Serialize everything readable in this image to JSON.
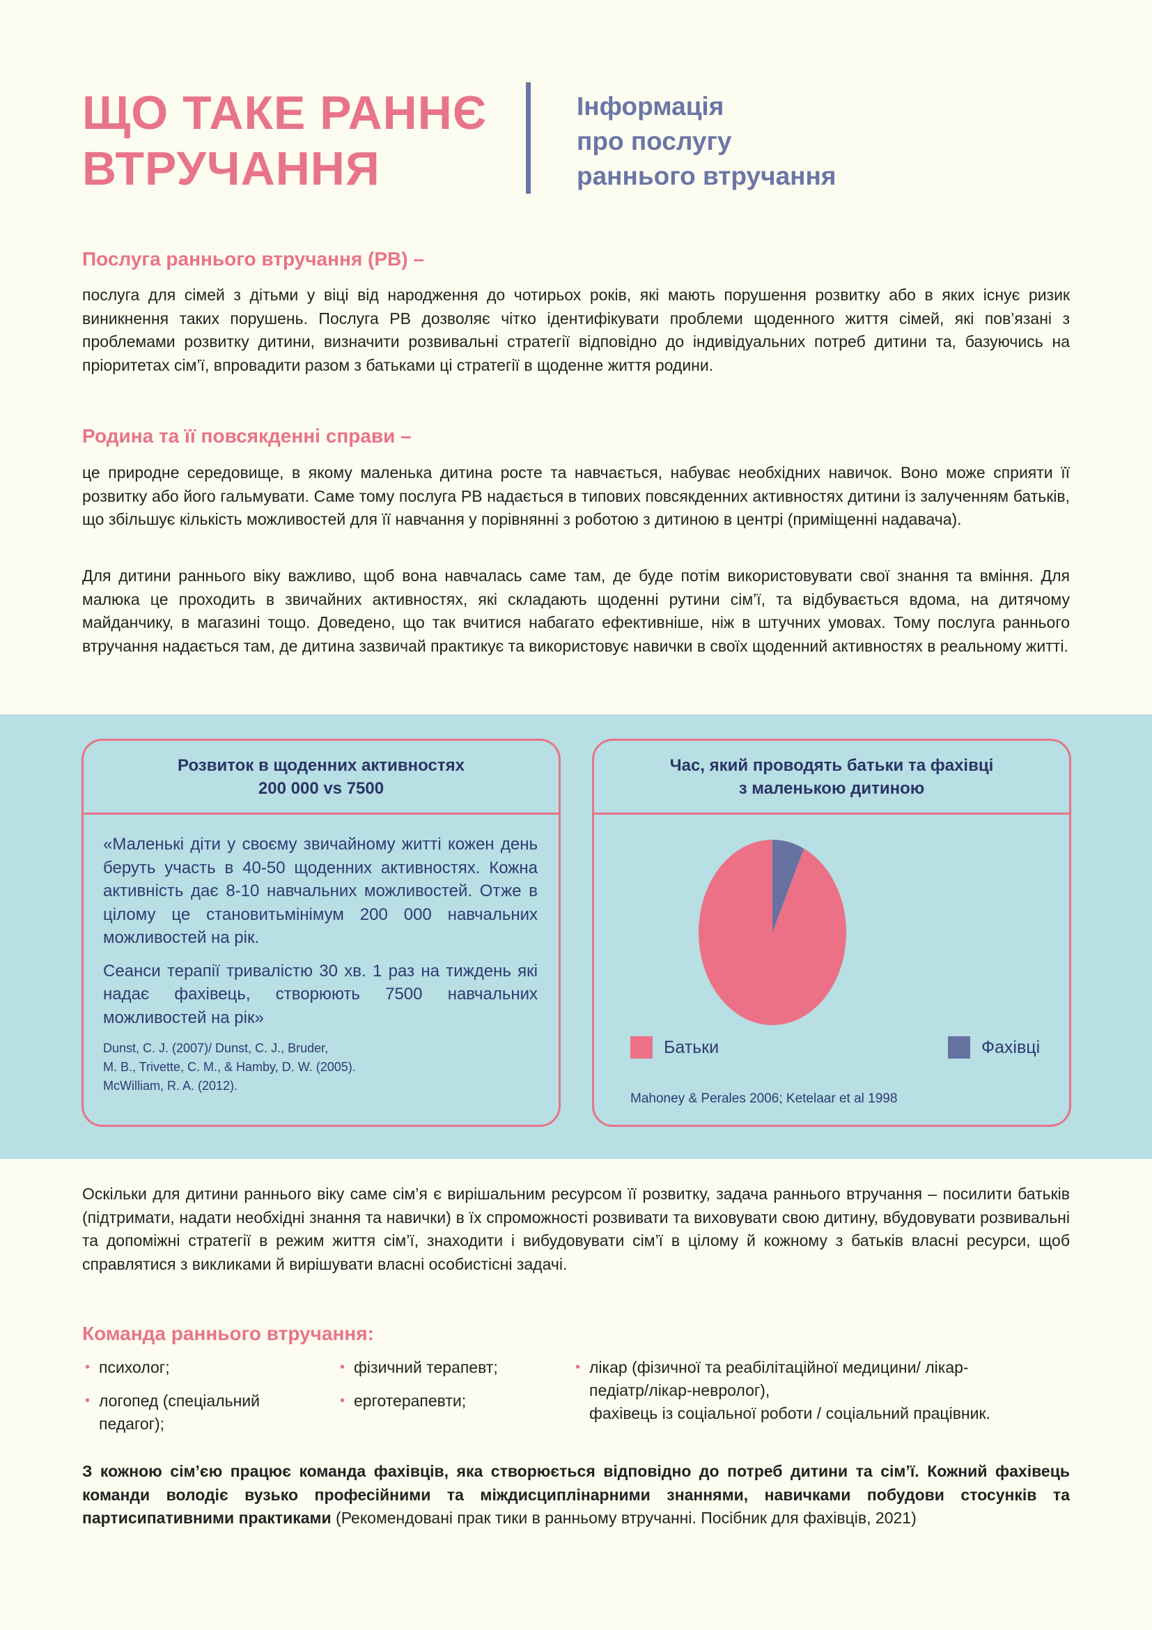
{
  "header": {
    "title_line1": "ЩО ТАКЕ РАННЄ",
    "title_line2": "ВТРУЧАННЯ",
    "subtitle_line1": "Інформація",
    "subtitle_line2": "про послугу",
    "subtitle_line3": "раннього втручання"
  },
  "section1": {
    "heading": "Послуга раннього втручання (РВ) –",
    "text": "послуга для сімей з дітьми у віці від народження до чотирьох років, які мають порушення розвитку або в яких існує ризик виникнення таких порушень. Послуга РВ дозволяє чітко ідентифікувати проблеми щоденного життя сімей, які пов’язані з проблемами розвитку дитини, визначити розвивальні стратегії відповідно до індивідуальних потреб дитини та, базуючись на пріоритетах сім’ї, впровадити разом з батьками ці стратегії в щоденне життя родини."
  },
  "section2": {
    "heading": "Родина та її повсякденні справи –",
    "text1": "це природне середовище, в якому маленька дитина росте та навчається, набуває необхідних навичок. Воно може сприяти її розвитку або його гальмувати. Саме тому послуга РВ надається в типових повсякденних активностях дитини із залученням батьків, що збільшує кількість можливостей для її навчання у порівнянні з роботою з дитиною в центрі (приміщенні надавача).",
    "text2": "Для дитини раннього віку важливо, щоб вона навчалась саме там, де буде потім використовувати свої знання та вміння. Для малюка це проходить в звичайних активностях, які складають щоденні рутини сім’ї, та відбувається вдома, на дитячому майданчику, в магазині тощо. Доведено, що так вчитися набагато ефективніше, ніж в штучних умовах. Тому послуга раннього втручання надається там, де дитина зазвичай практикує та використовує навички в своїх щоденний активностях в реальному житті."
  },
  "card_left": {
    "title_line1": "Розвиток в щоденних активностях",
    "title_line2": "200 000 vs 7500",
    "quote1": "«Маленькі діти у своєму звичайному житті кожен день беруть участь в 40-50 щоденних активностях. Кожна активність дає 8-10 навчальних можливостей. Отже в цілому це становитьмінімум 200 000 навчальних можливостей на рік.",
    "quote2": "Сеанси терапії тривалістю 30 хв. 1 раз на тиждень які надає фахівець, створюють 7500 навчальних можливостей на рік»",
    "ref1": "Dunst, C. J. (2007)/ Dunst, C. J., Bruder,",
    "ref2": "M. B., Trivette, C. M., & Hamby, D. W. (2005).",
    "ref3": "McWilliam, R. A. (2012)."
  },
  "card_right": {
    "source": "Mahoney & Perales 2006; Ketelaar et al 1998"
  },
  "chart_data": {
    "type": "pie",
    "title_line1": "Час, який проводять батьки та фахівці",
    "title_line2": "з маленькою дитиною",
    "legend": "bottom",
    "series": [
      {
        "name": "Батьки",
        "value": 93,
        "color": "#ec7186"
      },
      {
        "name": "Фахівці",
        "value": 7,
        "color": "#66729f"
      }
    ]
  },
  "section3": {
    "text": "Оскільки для дитини раннього віку саме сім’я є вирішальним ресурсом її розвитку, задача раннього втручання – посилити батьків (підтримати, надати необхідні знання та навички) в їх спроможності розвивати та виховувати свою дитину, вбудовувати розвивальні та допоміжні стратегії в режим життя сім’ї, знаходити і вибудовувати сім’ї в цілому й кожному з батьків власні ресурси, щоб справлятися з викликами й вирішувати власні особистісні задачі."
  },
  "team": {
    "heading": "Команда раннього втручання:",
    "items": [
      "психолог;",
      "логопед (спеціальний педагог);",
      "фізичний терапевт;",
      "ерготерапевти;",
      "лікар (фізичної та реабілітаційної медицини/ лікар-педіатр/лікар-невролог),",
      "фахівець із соціальної роботи / соціальний працівник."
    ]
  },
  "closing": {
    "bold": "З кожною сім’єю працює команда фахівців, яка створюється відповідно до потреб дитини та сім’ї. Кожний фахівець команди володіє вузько професійними та міждисциплінарними знаннями, навичками побудови стосунків та партисипативними практиками",
    "normal": " (Рекомендовані прак тики в ранньому втручанні. Посібник для фахівців, 2021)"
  },
  "colors": {
    "pink": "#e8748a",
    "blue": "#6b76a6",
    "band": "#b7dfe4"
  }
}
